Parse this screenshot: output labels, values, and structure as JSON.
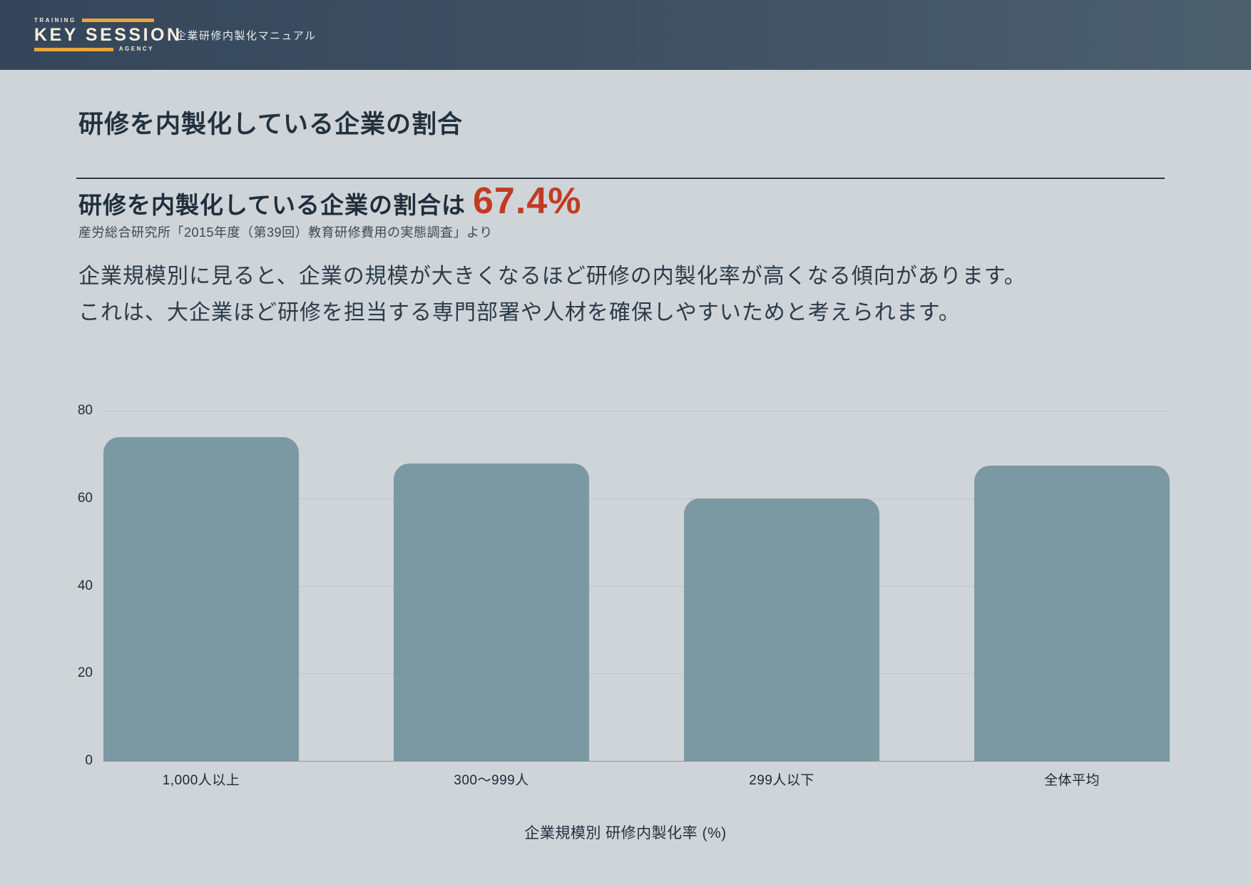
{
  "header": {
    "logo": {
      "training": "TRAINING",
      "name": "KEY SESSION",
      "agency": "AGENCY"
    },
    "doc_title": "企業研修内製化マニュアル"
  },
  "page": {
    "title": "研修を内製化している企業の割合",
    "headline_text": "研修を内製化している企業の割合は",
    "headline_value": "67.4%",
    "source": "産労総合研究所「2015年度（第39回）教育研修費用の実態調査」より",
    "body_line1": "企業規模別に見ると、企業の規模が大きくなるほど研修の内製化率が高くなる傾向があります。",
    "body_line2": "これは、大企業ほど研修を担当する専門部署や人材を確保しやすいためと考えられます。"
  },
  "colors": {
    "header_bg_left": "#35465a",
    "header_bg_right": "#4c5f6d",
    "accent_orange": "#eba33b",
    "logo_cream": "#f4eedd",
    "highlight_red": "#c23b21",
    "bar_teal": "#7a99a3",
    "dark_text": "#22313e",
    "gridline_gray": "#bcc3c8"
  },
  "chart_data": {
    "type": "bar",
    "categories": [
      "1,000人以上",
      "300～999人",
      "299人以下",
      "全体平均"
    ],
    "values": [
      74,
      68,
      60,
      67.4
    ],
    "title": "企業規模別 研修内製化率 (%)",
    "xlabel": "",
    "ylabel": "",
    "ylim": [
      0,
      80
    ],
    "yticks": [
      0,
      20,
      40,
      60,
      80
    ],
    "grid": true,
    "legend": false,
    "bar_color": "#7a99a3"
  }
}
